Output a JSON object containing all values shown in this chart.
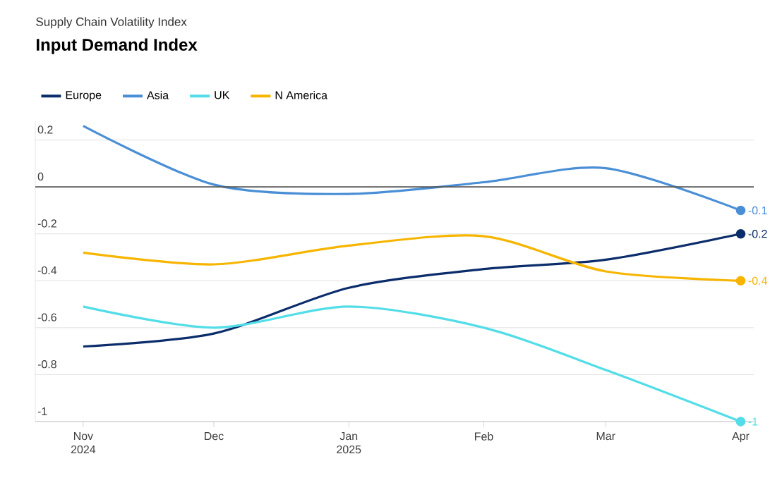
{
  "chart_data": {
    "type": "line",
    "subtitle": "Supply Chain Volatility Index",
    "title": "Input Demand Index",
    "x": [
      "2024-11",
      "2024-12",
      "2025-01",
      "2025-02",
      "2025-03",
      "2025-04"
    ],
    "xlim": [
      "2024-10-21",
      "2025-04-04"
    ],
    "xticks": [
      {
        "value": "2024-11",
        "label": "Nov 2024"
      },
      {
        "value": "2024-12",
        "label": "Dec"
      },
      {
        "value": "2025-01",
        "label": "Jan 2025"
      },
      {
        "value": "2025-02",
        "label": "Feb"
      },
      {
        "value": "2025-03",
        "label": "Mar"
      },
      {
        "value": "2025-04",
        "label": "Apr"
      }
    ],
    "ylim": [
      -1,
      0.28
    ],
    "yticks": [
      {
        "value": 0.2,
        "label": "0.2"
      },
      {
        "value": 0,
        "label": "0"
      },
      {
        "value": -0.2,
        "label": "-0.2"
      },
      {
        "value": -0.4,
        "label": "-0.4"
      },
      {
        "value": -0.6,
        "label": "-0.6"
      },
      {
        "value": -0.8,
        "label": "-0.8"
      },
      {
        "value": -1,
        "label": "-1"
      }
    ],
    "grid": "y",
    "legend": "top left",
    "ref_lines": [
      {
        "axis": "y",
        "value": 0
      }
    ],
    "series": [
      {
        "name": "Europe",
        "color": "#0b2d6b",
        "values": [
          -0.68,
          -0.625,
          -0.43,
          -0.35,
          -0.31,
          -0.2
        ],
        "value_labels": [
          null,
          null,
          null,
          null,
          null,
          "-0.2"
        ]
      },
      {
        "name": "Asia",
        "color": "#4a8fd6",
        "values": [
          0.26,
          0.01,
          -0.03,
          0.02,
          0.08,
          -0.1
        ],
        "value_labels": [
          null,
          null,
          null,
          null,
          null,
          "-0.1"
        ]
      },
      {
        "name": "UK",
        "color": "#52dde8",
        "values": [
          -0.51,
          -0.6,
          -0.51,
          -0.6,
          -0.78,
          -1
        ],
        "value_labels": [
          null,
          null,
          null,
          null,
          null,
          "-1"
        ]
      },
      {
        "name": "N America",
        "color": "#f7b500",
        "values": [
          -0.28,
          -0.33,
          -0.25,
          -0.21,
          -0.36,
          -0.4
        ],
        "value_labels": [
          null,
          null,
          null,
          null,
          null,
          "-0.4"
        ]
      }
    ]
  }
}
